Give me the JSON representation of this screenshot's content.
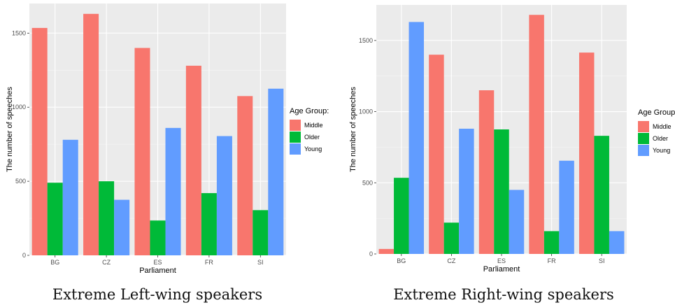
{
  "chart_data": [
    {
      "type": "bar",
      "caption": "Extreme Left-wing speakers",
      "categories": [
        "BG",
        "CZ",
        "ES",
        "FR",
        "SI"
      ],
      "xlabel": "Parliament",
      "ylabel": "The number of speeches",
      "ylim": [
        0,
        1700
      ],
      "yticks": [
        0,
        500,
        1000,
        1500
      ],
      "grid": true,
      "legend": {
        "title": "Age Group:",
        "placement": "right"
      },
      "series": [
        {
          "name": "Middle",
          "color": "#F8766D",
          "values": [
            1535,
            1630,
            1400,
            1280,
            1075
          ]
        },
        {
          "name": "Older",
          "color": "#00BA38",
          "values": [
            490,
            500,
            235,
            420,
            305
          ]
        },
        {
          "name": "Young",
          "color": "#619CFF",
          "values": [
            780,
            375,
            860,
            805,
            1125
          ]
        }
      ]
    },
    {
      "type": "bar",
      "caption": "Extreme Right-wing speakers",
      "categories": [
        "BG",
        "CZ",
        "ES",
        "FR",
        "SI"
      ],
      "xlabel": "Parliament",
      "ylabel": "The number of speeches",
      "ylim": [
        0,
        1750
      ],
      "yticks": [
        0,
        500,
        1000,
        1500
      ],
      "grid": true,
      "legend": {
        "title": "Age Group:",
        "placement": "right"
      },
      "series": [
        {
          "name": "Middle",
          "color": "#F8766D",
          "values": [
            35,
            1400,
            1150,
            1680,
            1415
          ]
        },
        {
          "name": "Older",
          "color": "#00BA38",
          "values": [
            535,
            220,
            875,
            160,
            830
          ]
        },
        {
          "name": "Young",
          "color": "#619CFF",
          "values": [
            1630,
            880,
            450,
            655,
            160
          ]
        }
      ]
    }
  ]
}
